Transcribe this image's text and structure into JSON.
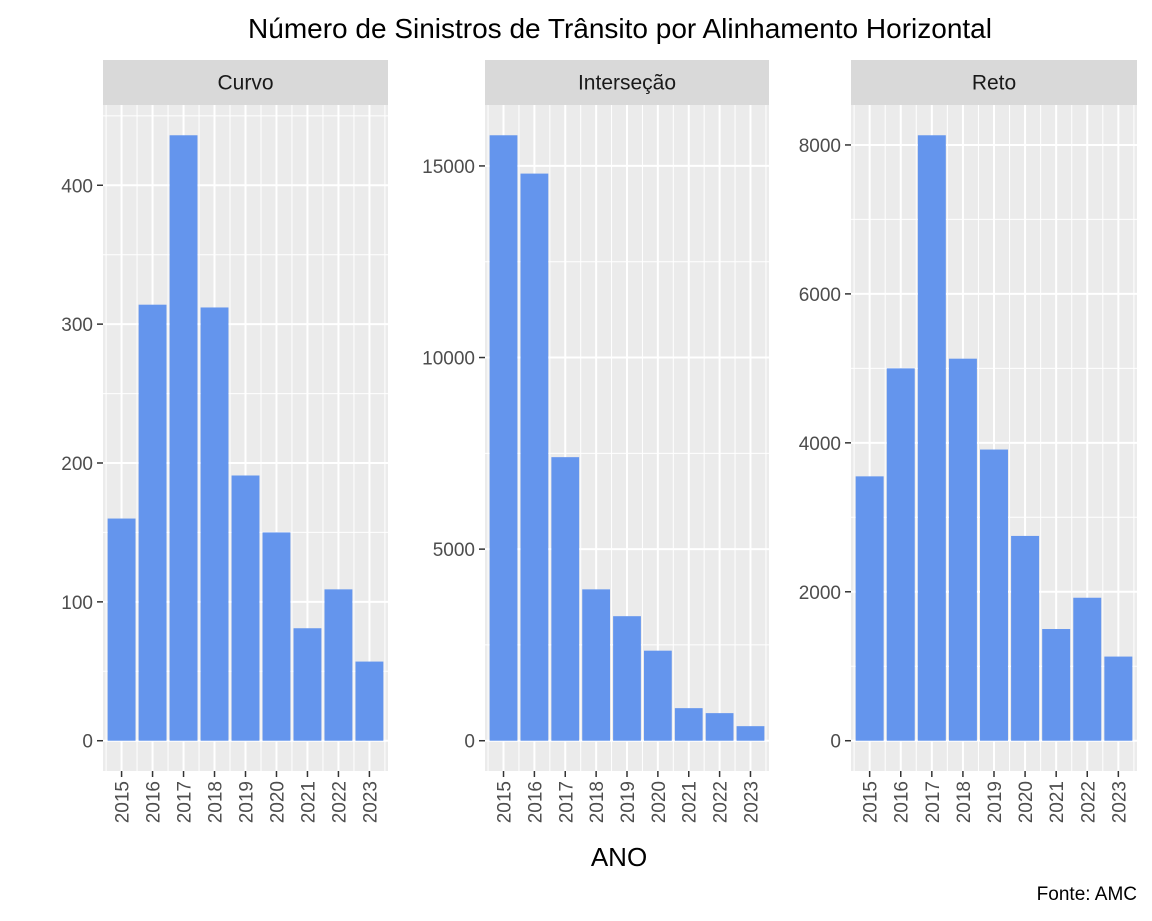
{
  "title": "Número de Sinistros de Trânsito por Alinhamento Horizontal",
  "xlabel": "ANO",
  "caption": "Fonte: AMC",
  "bar_color": "#6495ED",
  "panel_bg": "#EBEBEB",
  "strip_bg": "#D9D9D9",
  "grid_color": "#FFFFFF",
  "chart_data": {
    "type": "bar",
    "facet_by": "Alinhamento Horizontal",
    "categories": [
      "2015",
      "2016",
      "2017",
      "2018",
      "2019",
      "2020",
      "2021",
      "2022",
      "2023"
    ],
    "grid": true,
    "scales": "free_y",
    "panels": [
      {
        "name": "Curvo",
        "values": [
          160,
          314,
          436,
          312,
          191,
          150,
          81,
          109,
          57
        ],
        "ylim": [
          -21.8,
          457.8
        ],
        "yticks": [
          0,
          100,
          200,
          300,
          400
        ]
      },
      {
        "name": "Interseção",
        "values": [
          15800,
          14800,
          7400,
          3950,
          3250,
          2350,
          850,
          720,
          380
        ],
        "ylim": [
          -790,
          16590
        ],
        "yticks": [
          0,
          5000,
          10000,
          15000
        ]
      },
      {
        "name": "Reto",
        "values": [
          3550,
          5000,
          8130,
          5130,
          3910,
          2750,
          1500,
          1920,
          1130
        ],
        "ylim": [
          -406.5,
          8536.5
        ],
        "yticks": [
          0,
          2000,
          4000,
          6000,
          8000
        ]
      }
    ]
  }
}
